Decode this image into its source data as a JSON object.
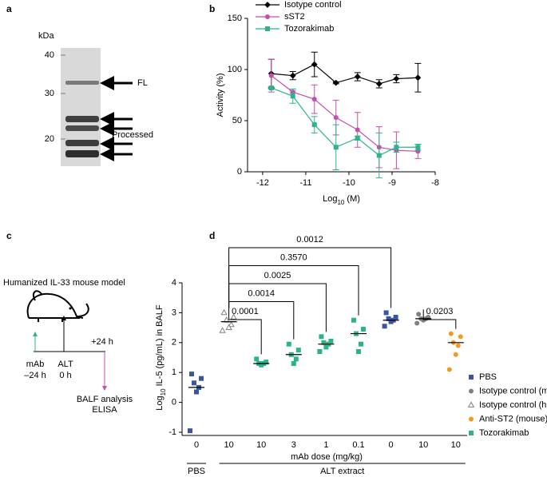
{
  "panel_labels": [
    "a",
    "b",
    "c",
    "d"
  ],
  "gel": {
    "unit": "kDa",
    "markers": [
      "40",
      "30",
      "20"
    ],
    "labels": [
      "FL",
      "Processed"
    ]
  },
  "model": {
    "title": "Humanized IL-33 mouse model",
    "steps": [
      {
        "lines": [
          "mAb",
          "–24 h"
        ]
      },
      {
        "lines": [
          "ALT",
          "0 h"
        ]
      },
      {
        "lines": [
          "+24 h"
        ]
      },
      {
        "lines": [
          "BALF analysis",
          "ELISA"
        ]
      }
    ]
  },
  "chart_data": [
    {
      "type": "line",
      "x_label": {
        "base": "Log",
        "sub": "10",
        "rest": " (M)"
      },
      "y_label": "Activity (%)",
      "xlim": [
        -12.35,
        -8
      ],
      "xticks": [
        -12,
        -11,
        -10,
        -9,
        -8
      ],
      "ylim": [
        0,
        150
      ],
      "yticks": [
        0,
        50,
        100,
        150
      ],
      "x": [
        -11.8,
        -11.3,
        -10.8,
        -10.3,
        -9.8,
        -9.3,
        -8.9,
        -8.4
      ],
      "legend": "top",
      "series": [
        {
          "name": "Isotype control",
          "color": "#000000",
          "marker": "diamond",
          "values": [
            96,
            94,
            105,
            87,
            93,
            86,
            91,
            92
          ],
          "errors": [
            14,
            4,
            12,
            1,
            4,
            4,
            4,
            14
          ]
        },
        {
          "name": "sST2",
          "color": "#c34fae",
          "marker": "circle",
          "values": [
            94,
            78,
            71,
            53,
            41,
            24,
            21,
            20
          ],
          "errors": [
            16,
            1,
            14,
            17,
            17,
            20,
            18,
            7
          ]
        },
        {
          "name": "Tozorakimab",
          "color": "#2bb48b",
          "marker": "square",
          "values": [
            82,
            74,
            46,
            24,
            33,
            16,
            24,
            24
          ],
          "errors": [
            1,
            7,
            8,
            22,
            2,
            22,
            5,
            3
          ]
        }
      ]
    },
    {
      "type": "dot",
      "y_label": {
        "base": "Log",
        "sub": "10",
        "rest": " IL-5 (pg/mL) in BALF"
      },
      "x_label": "mAb dose (mg/kg)",
      "categories": [
        "0",
        "10",
        "10",
        "3",
        "1",
        "0.1",
        "0",
        "10",
        "10"
      ],
      "groups": [
        {
          "label": "PBS",
          "span": [
            0,
            0
          ]
        },
        {
          "label": "ALT extract",
          "span": [
            1,
            8
          ]
        }
      ],
      "ylim": [
        -1,
        4
      ],
      "yticks": [
        -1,
        0,
        1,
        2,
        3,
        4
      ],
      "legend": "right",
      "series": [
        {
          "name": "PBS",
          "color": "#3b55a3",
          "marker": "square",
          "values": [
            [
              0.95,
              0.8,
              0.65,
              0.5,
              0.35,
              -0.95
            ],
            null,
            null,
            null,
            null,
            null,
            [
              3.0,
              2.85,
              2.8,
              2.75,
              2.7,
              2.55
            ],
            null,
            null
          ],
          "means": [
            0.5,
            null,
            null,
            null,
            null,
            null,
            2.75,
            null,
            null
          ]
        },
        {
          "name": "Isotype control (mouse)",
          "color": "#808080",
          "marker": "circle",
          "values": [
            null,
            null,
            null,
            null,
            null,
            null,
            null,
            [
              2.95,
              2.85,
              2.8,
              2.8,
              2.75,
              2.65
            ],
            null
          ],
          "means": [
            null,
            null,
            null,
            null,
            null,
            null,
            null,
            2.8,
            null
          ]
        },
        {
          "name": "Isotype control (human)",
          "color": "#808080",
          "marker": "triangle-open",
          "values": [
            null,
            [
              3.0,
              2.85,
              2.75,
              2.6,
              2.5,
              2.4
            ],
            null,
            null,
            null,
            null,
            null,
            null,
            null
          ],
          "means": [
            null,
            2.7,
            null,
            null,
            null,
            null,
            null,
            null,
            null
          ]
        },
        {
          "name": "Anti-ST2 (mouse)",
          "color": "#f39a1e",
          "marker": "circle",
          "values": [
            null,
            null,
            null,
            null,
            null,
            null,
            null,
            null,
            [
              2.3,
              2.2,
              2.0,
              1.9,
              1.6,
              1.1
            ]
          ],
          "means": [
            null,
            null,
            null,
            null,
            null,
            null,
            null,
            null,
            2.0
          ]
        },
        {
          "name": "Tozorakimab",
          "color": "#2bb48b",
          "marker": "square",
          "values": [
            null,
            null,
            [
              1.45,
              1.35,
              1.3,
              1.3,
              1.25
            ],
            [
              1.95,
              1.75,
              1.6,
              1.45,
              1.3
            ],
            [
              2.2,
              2.05,
              2.0,
              1.95,
              1.85,
              1.7
            ],
            [
              2.75,
              2.45,
              2.3,
              1.95,
              1.7
            ],
            null,
            null,
            null
          ],
          "means": [
            null,
            null,
            1.3,
            1.6,
            1.95,
            2.3,
            null,
            null,
            null
          ]
        }
      ],
      "comparisons": [
        {
          "label": "0.0012",
          "between": [
            1,
            6
          ]
        },
        {
          "label": "0.3570",
          "between": [
            1,
            5
          ]
        },
        {
          "label": "0.0025",
          "between": [
            1,
            4
          ]
        },
        {
          "label": "0.0014",
          "between": [
            1,
            3
          ]
        },
        {
          "label": "0.0001",
          "between": [
            1,
            2
          ]
        },
        {
          "label": "0.0203",
          "between": [
            7,
            8
          ]
        }
      ]
    }
  ]
}
